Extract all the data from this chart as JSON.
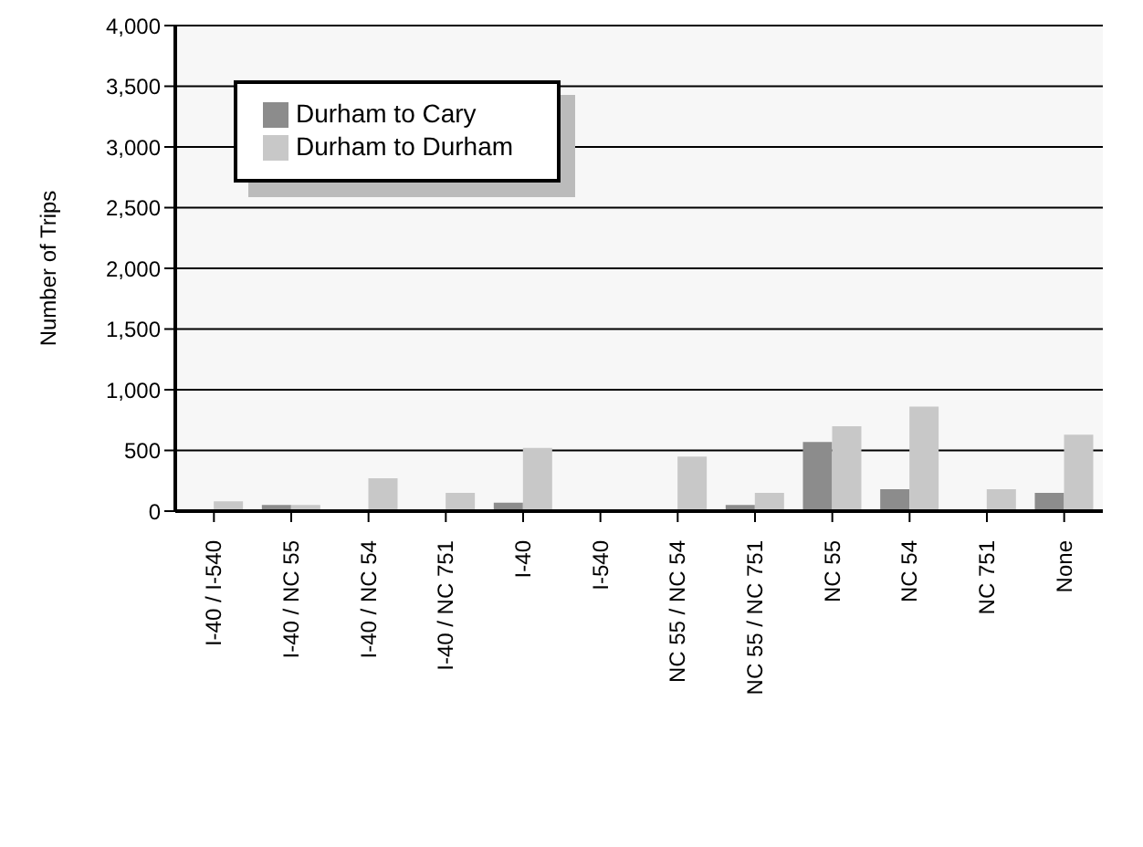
{
  "chart_data": {
    "type": "bar",
    "ylabel": "Number of Trips",
    "categories": [
      "I-40 / I-540",
      "I-40 / NC 55",
      "I-40 / NC 54",
      "I-40 / NC 751",
      "I-40",
      "I-540",
      "NC 55 / NC 54",
      "NC 55 / NC 751",
      "NC 55",
      "NC 54",
      "NC 751",
      "None"
    ],
    "series": [
      {
        "name": "Durham to Cary",
        "color": "#8c8c8c",
        "values": [
          0,
          50,
          0,
          0,
          70,
          0,
          0,
          50,
          570,
          180,
          0,
          150
        ]
      },
      {
        "name": "Durham to Durham",
        "color": "#c8c8c8",
        "values": [
          80,
          50,
          270,
          150,
          520,
          0,
          450,
          150,
          700,
          860,
          180,
          630
        ]
      }
    ],
    "ylim": [
      0,
      4000
    ],
    "yticks": [
      {
        "value": 0,
        "label": "0"
      },
      {
        "value": 500,
        "label": "500"
      },
      {
        "value": 1000,
        "label": "1,000"
      },
      {
        "value": 1500,
        "label": "1,500"
      },
      {
        "value": 2000,
        "label": "2,000"
      },
      {
        "value": 2500,
        "label": "2,500"
      },
      {
        "value": 3000,
        "label": "3,000"
      },
      {
        "value": 3500,
        "label": "3,500"
      },
      {
        "value": 4000,
        "label": "4,000"
      }
    ],
    "grid": "y",
    "legend": "top left"
  }
}
